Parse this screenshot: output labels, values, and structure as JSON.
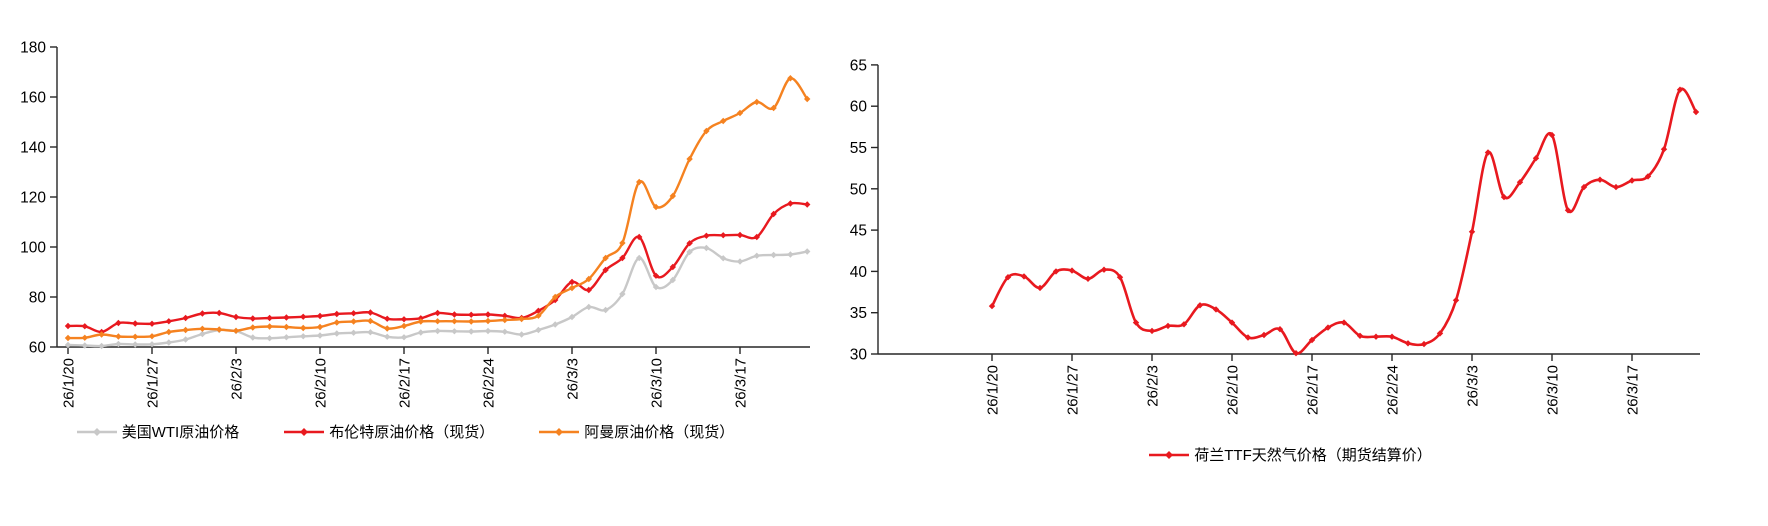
{
  "page": {
    "background": "#ffffff",
    "description": "Two line charts: crude oil spot prices and Dutch TTF natural gas futures settlement price"
  },
  "colors": {
    "wti_gray": "#c8c8c8",
    "brent_red": "#e8191f",
    "oman_orange": "#f58220",
    "ttf_red": "#e8191f",
    "axis": "#262626",
    "tick_text": "#000000"
  },
  "chart_data": [
    {
      "type": "line",
      "title": "",
      "xlabel": "",
      "ylabel": "",
      "ylim": [
        60,
        180
      ],
      "y_ticks": [
        60,
        80,
        100,
        120,
        140,
        160,
        180
      ],
      "grid": false,
      "legend_position": "bottom",
      "x_axis_labels_rotated": true,
      "x_tick_labels": [
        "26/1/20",
        "26/1/27",
        "26/2/3",
        "26/2/10",
        "26/2/17",
        "26/2/24",
        "26/3/3",
        "26/3/10",
        "26/3/17"
      ],
      "categories": [
        "26/1/20",
        "26/1/21",
        "26/1/22",
        "26/1/23",
        "26/1/26",
        "26/1/27",
        "26/1/28",
        "26/1/29",
        "26/1/30",
        "26/2/2",
        "26/2/3",
        "26/2/4",
        "26/2/5",
        "26/2/6",
        "26/2/9",
        "26/2/10",
        "26/2/11",
        "26/2/12",
        "26/2/13",
        "26/2/16",
        "26/2/17",
        "26/2/18",
        "26/2/19",
        "26/2/20",
        "26/2/23",
        "26/2/24",
        "26/2/25",
        "26/2/26",
        "26/2/27",
        "26/3/2",
        "26/3/3",
        "26/3/4",
        "26/3/5",
        "26/3/6",
        "26/3/9",
        "26/3/10",
        "26/3/11",
        "26/3/12",
        "26/3/13",
        "26/3/16",
        "26/3/17",
        "26/3/18",
        "26/3/19",
        "26/3/20",
        "26/3/23"
      ],
      "series": [
        {
          "name": "美国WTI原油价格",
          "color": "#c8c8c8",
          "values": [
            60.8,
            60.6,
            60.4,
            61.2,
            61.0,
            61.1,
            61.8,
            63.0,
            65.2,
            66.8,
            66.4,
            63.8,
            63.5,
            63.9,
            64.3,
            64.6,
            65.4,
            65.7,
            65.9,
            64.1,
            63.9,
            65.8,
            66.4,
            66.3,
            66.2,
            66.4,
            66.1,
            65.0,
            66.8,
            69.0,
            72.0,
            76.0,
            74.8,
            81.2,
            95.6,
            84.0,
            86.8,
            98.0,
            99.6,
            95.5,
            94.2,
            96.5,
            96.8,
            97.0,
            98.2
          ]
        },
        {
          "name": "布伦特原油价格（现货）",
          "color": "#e8191f",
          "values": [
            68.4,
            68.3,
            66.0,
            69.6,
            69.4,
            69.3,
            70.3,
            71.6,
            73.4,
            73.6,
            72.0,
            71.4,
            71.6,
            71.8,
            72.1,
            72.4,
            73.2,
            73.5,
            73.8,
            71.3,
            71.1,
            71.5,
            73.6,
            73.0,
            72.9,
            73.0,
            72.5,
            71.6,
            74.5,
            78.8,
            86.0,
            82.8,
            90.8,
            95.6,
            104.0,
            88.5,
            92.0,
            101.5,
            104.5,
            104.7,
            104.8,
            104.0,
            113.2,
            117.4,
            117.0
          ]
        },
        {
          "name": "阿曼原油价格（现货）",
          "color": "#f58220",
          "values": [
            63.6,
            63.7,
            65.0,
            64.2,
            64.1,
            64.3,
            66.0,
            66.8,
            67.3,
            67.0,
            66.5,
            67.8,
            68.2,
            68.0,
            67.6,
            68.0,
            69.8,
            70.2,
            70.4,
            67.4,
            68.4,
            70.2,
            70.3,
            70.3,
            70.2,
            70.4,
            70.8,
            71.2,
            72.5,
            80.0,
            83.6,
            87.2,
            95.6,
            101.6,
            126.0,
            116.0,
            120.4,
            135.2,
            146.4,
            150.4,
            153.6,
            158.0,
            155.6,
            167.5,
            159.2
          ]
        }
      ]
    },
    {
      "type": "line",
      "title": "",
      "xlabel": "",
      "ylabel": "",
      "ylim": [
        30,
        65
      ],
      "y_ticks": [
        30,
        35,
        40,
        45,
        50,
        55,
        60,
        65
      ],
      "grid": false,
      "legend_position": "bottom",
      "x_axis_labels_rotated": true,
      "x_tick_labels": [
        "26/1/20",
        "26/1/27",
        "26/2/3",
        "26/2/10",
        "26/2/17",
        "26/2/24",
        "26/3/3",
        "26/3/10",
        "26/3/17"
      ],
      "categories": [
        "26/1/20",
        "26/1/21",
        "26/1/22",
        "26/1/23",
        "26/1/26",
        "26/1/27",
        "26/1/28",
        "26/1/29",
        "26/1/30",
        "26/2/2",
        "26/2/3",
        "26/2/4",
        "26/2/5",
        "26/2/6",
        "26/2/9",
        "26/2/10",
        "26/2/11",
        "26/2/12",
        "26/2/13",
        "26/2/16",
        "26/2/17",
        "26/2/18",
        "26/2/19",
        "26/2/20",
        "26/2/23",
        "26/2/24",
        "26/2/25",
        "26/2/26",
        "26/2/27",
        "26/3/2",
        "26/3/3",
        "26/3/4",
        "26/3/5",
        "26/3/6",
        "26/3/9",
        "26/3/10",
        "26/3/11",
        "26/3/12",
        "26/3/13",
        "26/3/16",
        "26/3/17",
        "26/3/18",
        "26/3/19",
        "26/3/20",
        "26/3/23"
      ],
      "series": [
        {
          "name": "荷兰TTF天然气价格（期货结算价）",
          "color": "#e8191f",
          "values": [
            35.8,
            39.3,
            39.4,
            38.0,
            40.0,
            40.1,
            39.1,
            40.2,
            39.3,
            33.8,
            32.8,
            33.4,
            33.6,
            35.9,
            35.4,
            33.8,
            32.0,
            32.3,
            33.0,
            30.1,
            31.7,
            33.2,
            33.8,
            32.2,
            32.1,
            32.1,
            31.3,
            31.2,
            32.5,
            36.5,
            44.8,
            54.4,
            49.0,
            50.8,
            53.7,
            56.5,
            47.4,
            50.2,
            51.1,
            50.2,
            51.0,
            51.5,
            54.8,
            62.0,
            59.3
          ]
        }
      ]
    }
  ]
}
